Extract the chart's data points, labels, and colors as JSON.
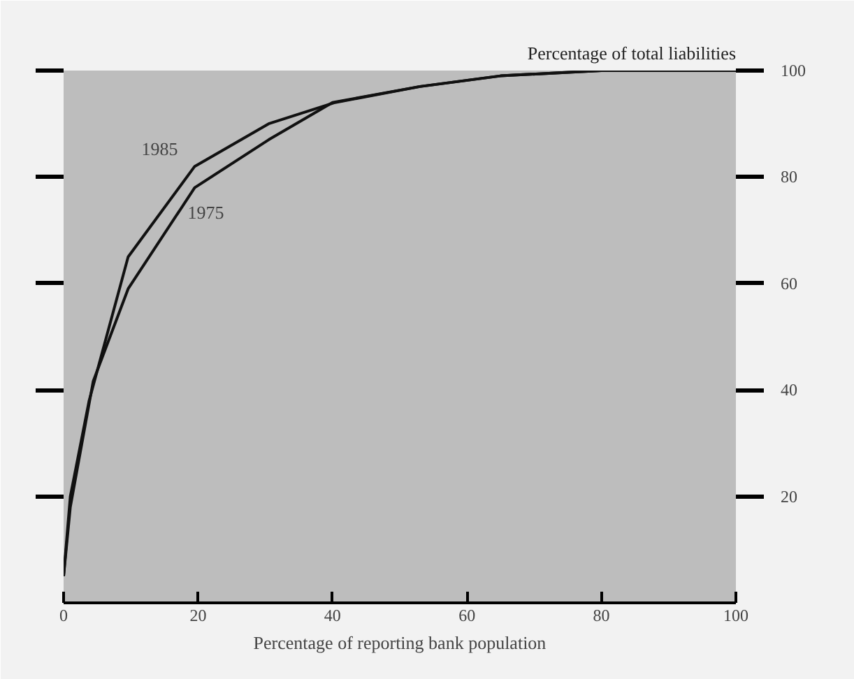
{
  "chart_data": {
    "type": "line",
    "xlabel": "Percentage of reporting bank population",
    "y2label": "Percentage of total liabilities",
    "series": [
      {
        "color": "#111111",
        "axis": "y2",
        "x": [
          0,
          1,
          3.8,
          9.6,
          19.5,
          30.5,
          40.4,
          53,
          65,
          80,
          100
        ],
        "values": [
          5,
          20,
          38,
          65,
          82,
          90,
          94,
          97,
          99,
          100,
          100
        ]
      },
      {
        "color": "#111111",
        "axis": "y2",
        "x": [
          0,
          1,
          4.4,
          9.6,
          19.5,
          30.5,
          40,
          53,
          65,
          80
        ],
        "values": [
          5,
          18,
          41.6,
          59,
          78,
          87,
          94,
          97,
          99,
          100
        ]
      }
    ],
    "annotations": [
      "1985",
      "1975"
    ],
    "xlim": [
      0,
      100
    ],
    "xticks": [
      0,
      20,
      40,
      60,
      80,
      100
    ],
    "y2lim": [
      0,
      100
    ],
    "y2ticks": [
      20,
      40,
      60,
      80,
      100
    ],
    "marker": "none",
    "line_style": "solid",
    "grid": false
  }
}
